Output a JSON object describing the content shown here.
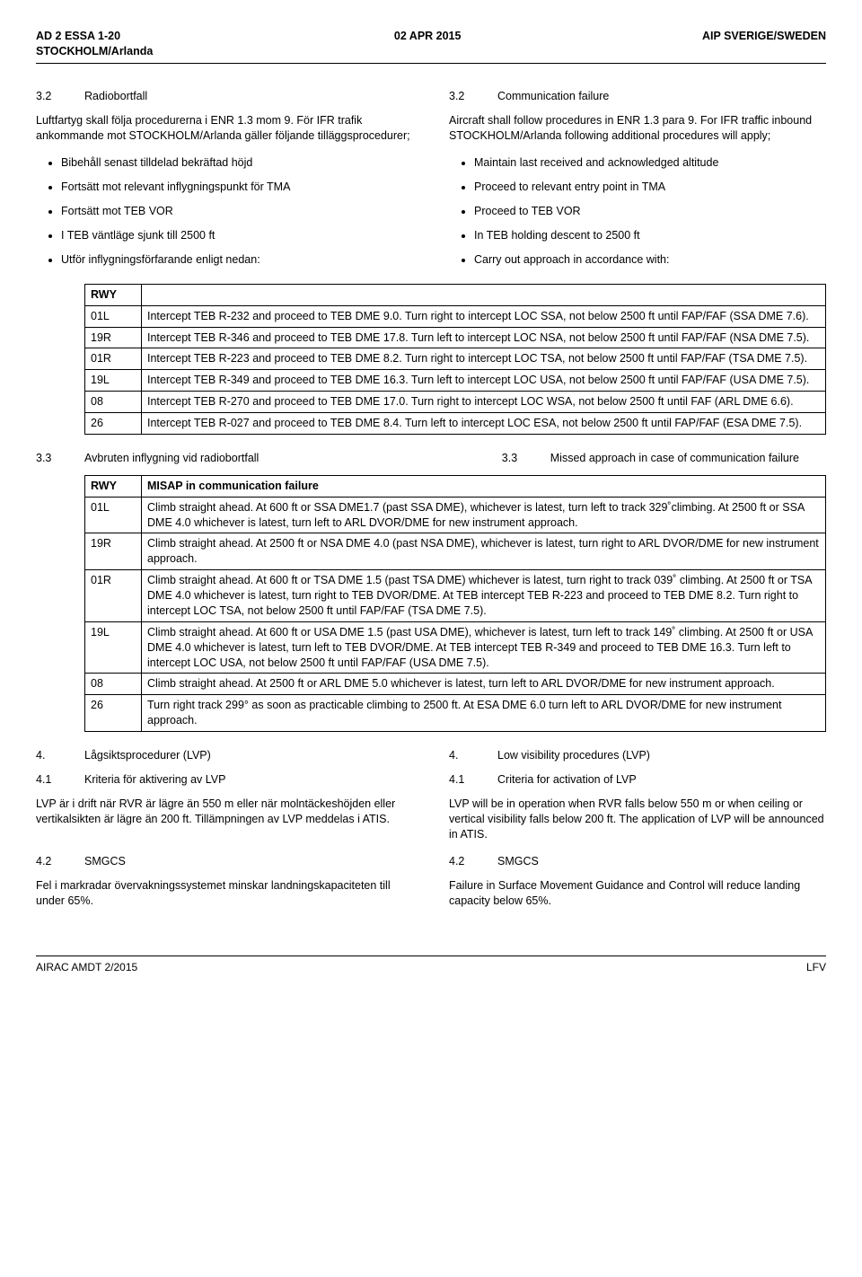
{
  "header": {
    "left_line1": "AD 2 ESSA 1-20",
    "left_line2": "STOCKHOLM/Arlanda",
    "center": "02 APR 2015",
    "right": "AIP SVERIGE/SWEDEN"
  },
  "body": {
    "sec32": {
      "num_sv": "3.2",
      "title_sv": "Radiobortfall",
      "num_en": "3.2",
      "title_en": "Communication failure",
      "para_sv": "Luftfartyg skall följa procedurerna i ENR 1.3 mom 9. För IFR trafik ankommande mot STOCKHOLM/Arlanda gäller följande tilläggsprocedurer;",
      "para_en": "Aircraft shall follow procedures in ENR 1.3 para 9. For IFR traffic inbound STOCKHOLM/Arlanda following additional procedures will apply;",
      "bullets_sv": [
        "Bibehåll senast tilldelad bekräftad höjd",
        "Fortsätt mot relevant inflygningspunkt för TMA",
        "Fortsätt mot TEB VOR",
        "I TEB väntläge sjunk till 2500 ft",
        "Utför inflygningsförfarande enligt nedan:"
      ],
      "bullets_en": [
        "Maintain last received and acknowledged altitude",
        "Proceed to relevant entry point in TMA",
        "Proceed to TEB VOR",
        "In TEB holding descent to 2500 ft",
        "Carry out approach in accordance with:"
      ]
    },
    "table1_header": "RWY",
    "table1": [
      {
        "rwy": "01L",
        "txt": "Intercept TEB R-232 and proceed to TEB DME 9.0. Turn right to intercept LOC SSA, not below 2500 ft until FAP/FAF (SSA DME 7.6)."
      },
      {
        "rwy": "19R",
        "txt": "Intercept TEB R-346 and proceed to TEB DME 17.8. Turn left to intercept LOC NSA, not below 2500 ft until FAP/FAF (NSA DME 7.5)."
      },
      {
        "rwy": "01R",
        "txt": "Intercept TEB R-223 and proceed to TEB DME 8.2. Turn right to intercept LOC TSA, not below 2500 ft until FAP/FAF (TSA DME 7.5)."
      },
      {
        "rwy": "19L",
        "txt": "Intercept TEB R-349 and proceed to TEB DME 16.3. Turn left to intercept LOC USA, not below 2500 ft until FAP/FAF (USA DME 7.5)."
      },
      {
        "rwy": "08",
        "txt": "Intercept TEB R-270 and proceed to TEB DME 17.0. Turn right to intercept LOC WSA, not below 2500 ft until FAF (ARL DME 6.6)."
      },
      {
        "rwy": "26",
        "txt": "Intercept TEB R-027 and proceed to TEB DME 8.4. Turn left to intercept LOC ESA, not below 2500 ft until FAP/FAF (ESA DME 7.5)."
      }
    ],
    "sec33": {
      "num_sv": "3.3",
      "title_sv": "Avbruten inflygning vid radiobortfall",
      "num_en": "3.3",
      "title_en": "Missed approach in case of communication failure"
    },
    "table2_headers": {
      "c1": "RWY",
      "c2": "MISAP in communication failure"
    },
    "table2": [
      {
        "rwy": "01L",
        "txt": "Climb straight ahead. At 600 ft or SSA DME1.7 (past SSA DME), whichever is latest, turn left to track 329˚climbing. At 2500 ft or SSA DME 4.0 whichever is latest, turn left to ARL DVOR/DME for new instrument approach."
      },
      {
        "rwy": "19R",
        "txt": "Climb straight ahead. At 2500 ft or NSA DME 4.0 (past NSA DME), whichever is latest, turn right to ARL DVOR/DME for new instrument approach."
      },
      {
        "rwy": "01R",
        "txt": "Climb straight ahead. At 600 ft or TSA DME 1.5 (past TSA DME) whichever is latest, turn right to track 039˚ climbing. At 2500 ft or TSA DME 4.0 whichever is latest, turn right to TEB DVOR/DME. At TEB intercept TEB R-223 and proceed to TEB DME 8.2. Turn right to intercept LOC TSA, not below 2500 ft until FAP/FAF (TSA DME 7.5)."
      },
      {
        "rwy": "19L",
        "txt": "Climb straight ahead. At 600 ft or USA DME 1.5 (past USA DME), whichever is latest, turn left to track 149˚ climbing. At 2500 ft or USA DME 4.0 whichever is latest, turn left to TEB DVOR/DME. At TEB intercept TEB R-349 and proceed to TEB DME 16.3. Turn left to intercept LOC USA, not below 2500 ft until FAP/FAF (USA DME 7.5)."
      },
      {
        "rwy": "08",
        "txt": "Climb straight ahead. At 2500 ft or ARL DME 5.0 whichever is latest, turn left to ARL DVOR/DME for new instrument approach."
      },
      {
        "rwy": "26",
        "txt": "Turn right track 299° as soon as practicable climbing to 2500 ft. At ESA DME 6.0 turn left to ARL DVOR/DME for new instrument approach."
      }
    ],
    "sec4": {
      "num_sv": "4.",
      "title_sv": "Lågsiktsprocedurer (LVP)",
      "num_en": "4.",
      "title_en": "Low visibility procedures (LVP)"
    },
    "sec41": {
      "num_sv": "4.1",
      "title_sv": "Kriteria för aktivering av LVP",
      "num_en": "4.1",
      "title_en": "Criteria for activation of LVP",
      "para_sv": "LVP är i drift när RVR är lägre än 550 m eller när molntäckeshöjden eller vertikalsikten är lägre än 200 ft. Tillämpningen av LVP meddelas i ATIS.",
      "para_en": "LVP will be in operation when RVR falls below 550 m or when ceiling or vertical visibility falls below 200 ft. The application of LVP will be announced in ATIS."
    },
    "sec42": {
      "num_sv": "4.2",
      "title_sv": "SMGCS",
      "num_en": "4.2",
      "title_en": "SMGCS",
      "para_sv": "Fel i markradar övervakningssystemet minskar landningskapaciteten till under 65%.",
      "para_en": "Failure in Surface Movement Guidance and Control will reduce landing capacity below 65%."
    }
  },
  "footer": {
    "left": "AIRAC AMDT 2/2015",
    "right": "LFV"
  }
}
